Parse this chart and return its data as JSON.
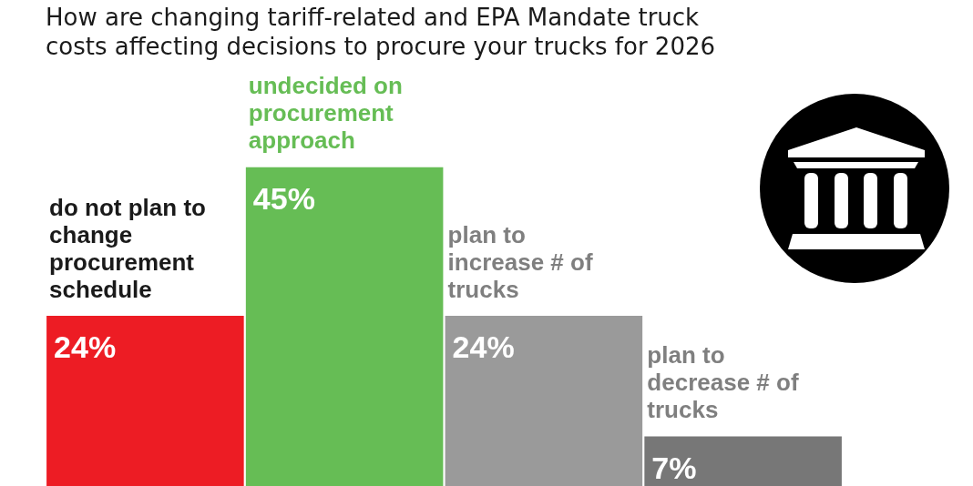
{
  "chart_data": {
    "type": "bar",
    "title": "How are changing tariff-related and EPA Mandate truck costs affecting decisions to procure your trucks for 2026",
    "categories": [
      "do not plan to change procurement schedule",
      "undecided on procurement approach",
      "plan to increase # of trucks",
      "plan to decrease # of trucks"
    ],
    "values": [
      24,
      45,
      24,
      7
    ],
    "colors": [
      "#ed1c24",
      "#66bd55",
      "#9a9a9a",
      "#777777"
    ],
    "value_labels": [
      "24%",
      "45%",
      "24%",
      "7%"
    ]
  }
}
